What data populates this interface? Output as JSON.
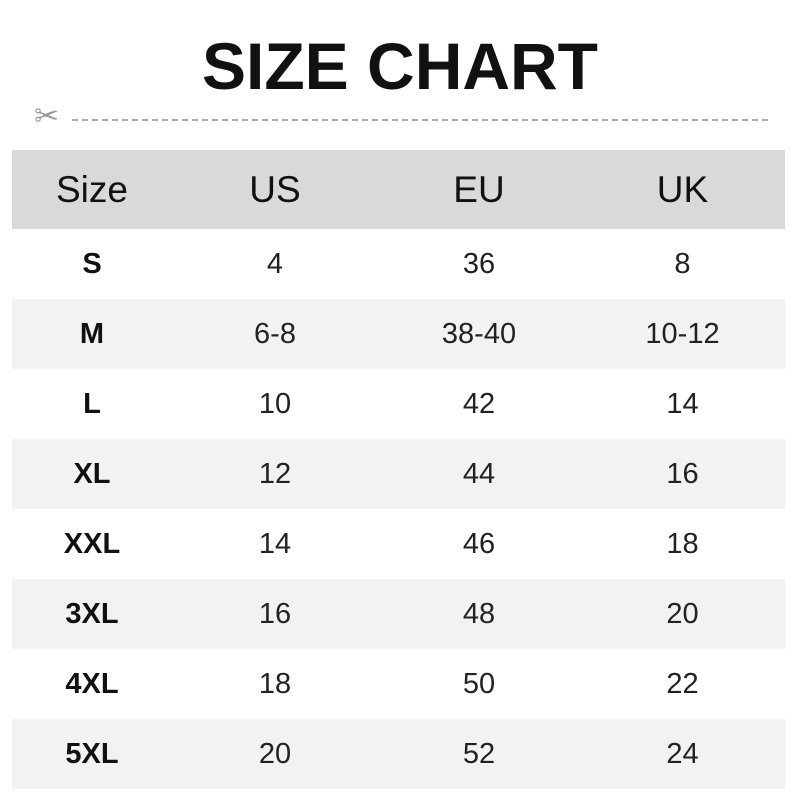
{
  "title": "SIZE CHART",
  "icons": {
    "cut_line": "scissors-icon"
  },
  "headers": [
    "Size",
    "US",
    "EU",
    "UK"
  ],
  "rows": [
    [
      "S",
      "4",
      "36",
      "8"
    ],
    [
      "M",
      "6-8",
      "38-40",
      "10-12"
    ],
    [
      "L",
      "10",
      "42",
      "14"
    ],
    [
      "XL",
      "12",
      "44",
      "16"
    ],
    [
      "XXL",
      "14",
      "46",
      "18"
    ],
    [
      "3XL",
      "16",
      "48",
      "20"
    ],
    [
      "4XL",
      "18",
      "50",
      "22"
    ],
    [
      "5XL",
      "20",
      "52",
      "24"
    ]
  ],
  "colors": {
    "header_bg": "#d9d9d9",
    "alt_row_bg": "#f2f2f2"
  }
}
